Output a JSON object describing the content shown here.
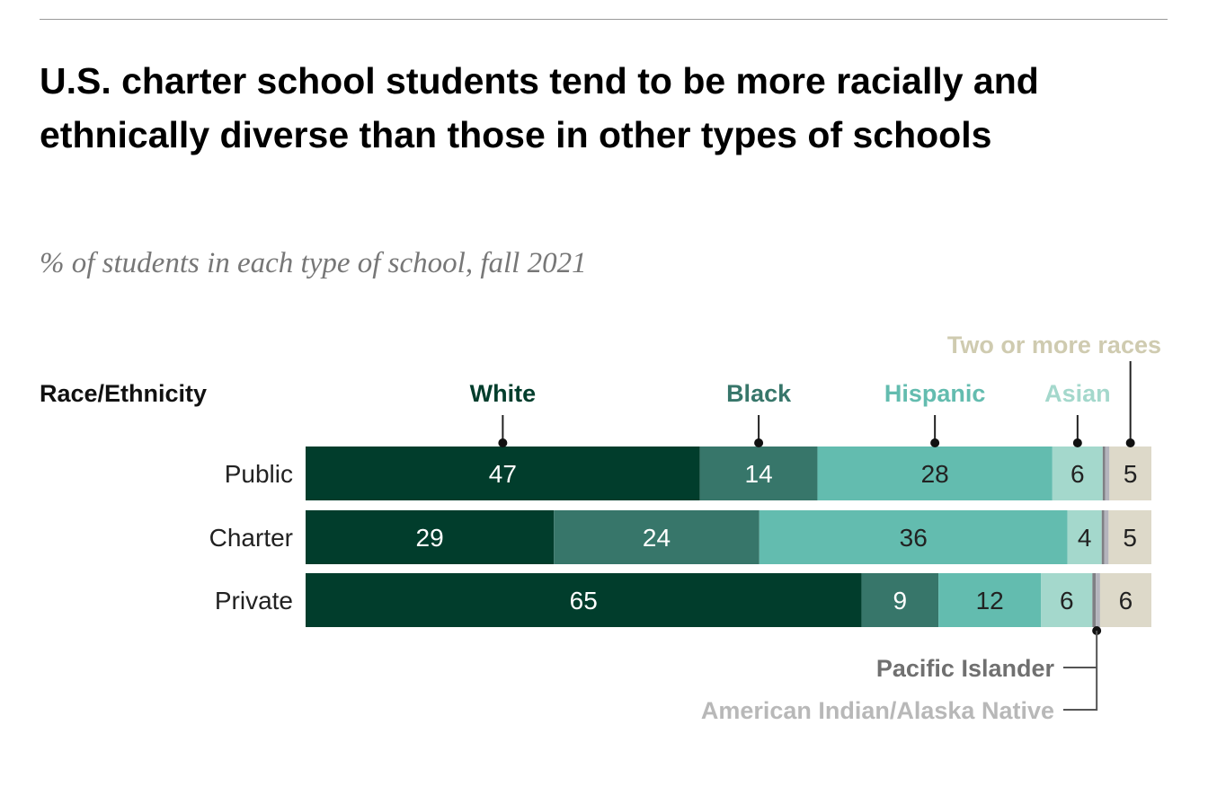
{
  "title": "U.S. charter school students tend to be more racially and ethnically diverse than those in other types of schools",
  "subtitle": "% of students in each type of school, fall 2021",
  "chart_data": {
    "type": "bar",
    "orientation": "horizontal-stacked",
    "legend_header": "Race/Ethnicity",
    "categories": [
      "Public",
      "Charter",
      "Private"
    ],
    "series": [
      {
        "name": "White",
        "values": [
          47,
          29,
          65
        ],
        "color": "#013d2c",
        "labelColor": "#ffffff",
        "legendColor": "#013d2c"
      },
      {
        "name": "Black",
        "values": [
          14,
          24,
          9
        ],
        "color": "#37766a",
        "labelColor": "#ffffff",
        "legendColor": "#37766a"
      },
      {
        "name": "Hispanic",
        "values": [
          28,
          36,
          12
        ],
        "color": "#63bcaf",
        "labelColor": "#222222",
        "legendColor": "#63bcaf"
      },
      {
        "name": "Asian",
        "values": [
          6,
          4,
          6
        ],
        "color": "#a4d8cc",
        "labelColor": "#222222",
        "legendColor": "#a4d8cc"
      },
      {
        "name": "Pacific Islander",
        "values": [
          0.3,
          0.3,
          0.4
        ],
        "color": "#7f7f84",
        "legendColor": "#707070",
        "unlabeled": true
      },
      {
        "name": "American Indian/Alaska Native",
        "values": [
          0.5,
          0.5,
          0.5
        ],
        "color": "#b4b4bc",
        "legendColor": "#b8b8b8",
        "unlabeled": true
      },
      {
        "name": "Two or more races",
        "values": [
          5,
          5,
          6
        ],
        "color": "#ddd9c9",
        "labelColor": "#222222",
        "legendColor": "#cfcbb0"
      }
    ],
    "grid": false,
    "xlim": [
      0,
      100
    ]
  }
}
